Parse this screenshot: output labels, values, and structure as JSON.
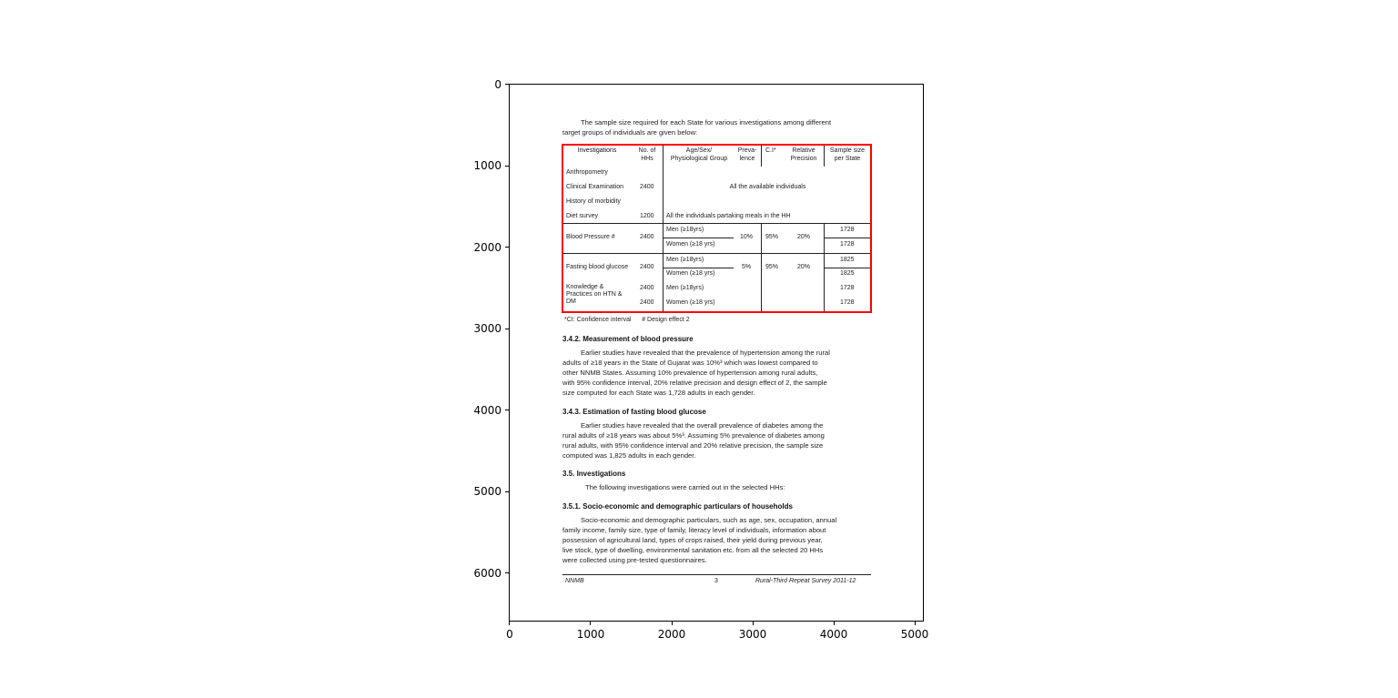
{
  "axes": {
    "x_ticks": [
      "0",
      "1000",
      "2000",
      "3000",
      "4000",
      "5000"
    ],
    "y_ticks": [
      "0",
      "1000",
      "2000",
      "3000",
      "4000",
      "5000",
      "6000"
    ],
    "image_extent": {
      "x": [
        0,
        5100
      ],
      "y": [
        6600,
        0
      ]
    },
    "highlight_box_color": "#ff0000"
  },
  "document": {
    "intro": [
      "The sample size required for each State for various investigations among different",
      "target groups of individuals are given below:"
    ],
    "table": {
      "headers": [
        "Investigations",
        "No. of HHs",
        "Age/Sex/ Physiological Group",
        "Preva-lence",
        "C.I*",
        "Relative Precision",
        "Sample size per State"
      ],
      "h1": [
        "Investigations",
        "No. of",
        "Age/Sex/",
        "Preva-",
        "C.I*",
        "Relative",
        "Sample size"
      ],
      "h2": [
        "",
        "HHs",
        "Physiological Group",
        "lence",
        "",
        "Precision",
        "per State"
      ],
      "general": [
        {
          "inv": "Anthropometry",
          "hhs": ""
        },
        {
          "inv": "Clinical Examination",
          "hhs": "2400"
        },
        {
          "inv": "History of morbidity",
          "hhs": ""
        },
        {
          "inv": "Diet survey",
          "hhs": "1200"
        }
      ],
      "all_members": "All the available individuals",
      "diet_group": "All the individuals partaking meals in the HH",
      "bp": {
        "inv": "Blood Pressure #",
        "hhs": "2400",
        "men": "Men (≥18yrs)",
        "women": "Women (≥18 yrs)",
        "prev": "10%",
        "ci": "95%",
        "rp": "20%",
        "n_men": "1728",
        "n_women": "1728"
      },
      "fbg": {
        "inv": "Fasting blood glucose",
        "hhs": "2400",
        "men": "Men (≥18yrs)",
        "women": "Women (≥18 yrs)",
        "prev": "5%",
        "ci": "95%",
        "rp": "20%",
        "n_men": "1825",
        "n_women": "1825"
      },
      "kp": {
        "inv1": "Knowledge &",
        "inv2": "Practices on HTN &",
        "inv3": "DM",
        "hhs1": "2400",
        "hhs2": "2400",
        "men": "Men (≥18yrs)",
        "women": "Women (≥18 yrs)",
        "n_men": "1728",
        "n_women": "1728"
      }
    },
    "footnote": "*CI: Confidence interval      # Design effect 2",
    "s342_title": "3.4.2. Measurement of blood pressure",
    "s342": [
      "Earlier studies have revealed that the prevalence of hypertension among the rural",
      "adults of ≥18 years in the State of Gujarat was 10%³ which was lowest compared to",
      "other NNMB States. Assuming 10% prevalence of hypertension among rural adults,",
      "with 95% confidence interval, 20% relative precision and design effect of 2, the sample",
      "size computed for each State was 1,728 adults in each gender."
    ],
    "s343_title": "3.4.3. Estimation of fasting blood glucose",
    "s343": [
      "Earlier studies have revealed that the overall prevalence of diabetes among the",
      "rural adults of ≥18 years was about 5%³. Assuming 5% prevalence of diabetes among",
      "rural adults, with 95% confidence interval and 20% relative precision, the sample size",
      "computed was 1,825 adults in each gender."
    ],
    "s35_title": "3.5. Investigations",
    "s35": "The following investigations were carried out in the selected HHs:",
    "s351_title": "3.5.1. Socio-economic and demographic particulars of households",
    "s351": [
      "Socio-economic and demographic particulars, such as age, sex, occupation, annual",
      "family income, family size, type of family, literacy level of individuals, information about",
      "possession of agricultural land, types of crops raised, their yield during previous year,",
      "live stock, type of dwelling, environmental sanitation etc. from all the selected 20 HHs",
      "were collected using pre-tested questionnaires."
    ],
    "footer": {
      "left": "NNMB",
      "center": "3",
      "right": "Rural-Third Repeat Survey 2011-12"
    }
  }
}
